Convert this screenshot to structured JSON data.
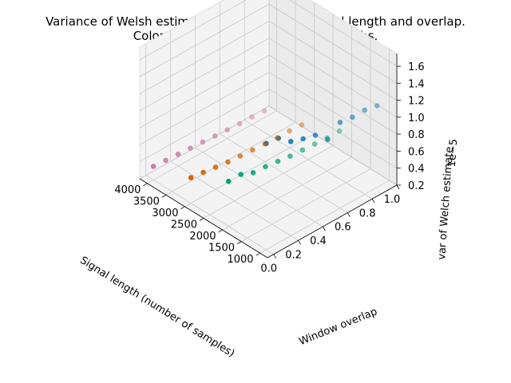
{
  "chart_data": {
    "type": "scatter",
    "projection": "3d",
    "title": "Variance of Welsh estimate as a function of signal length and overlap.",
    "subtitle": "Colors represent different signal lengths.",
    "xlabel": "Signal length (number of samples)",
    "ylabel": "Window overlap",
    "zlabel": "var of Welch estimate",
    "z_offset_label": "1e−5",
    "x_ticks": [
      "1000",
      "1500",
      "2000",
      "2500",
      "3000",
      "3500",
      "4000"
    ],
    "y_ticks": [
      "0.0",
      "0.2",
      "0.4",
      "0.6",
      "0.8",
      "1.0"
    ],
    "z_ticks": [
      "0.2",
      "0.4",
      "0.6",
      "0.8",
      "1.0",
      "1.2",
      "1.4",
      "1.6"
    ],
    "x_range": [
      800,
      4200
    ],
    "y_range": [
      -0.05,
      1.0
    ],
    "z_range": [
      0.2,
      1.75
    ],
    "grid": true,
    "series": [
      {
        "color": "#0072b2",
        "x": [
          1000,
          1000,
          1000,
          1000,
          1000,
          1000,
          1000,
          1000,
          1000,
          1000
        ],
        "y": [
          0.0,
          0.1,
          0.2,
          0.3,
          0.4,
          0.5,
          0.6,
          0.7,
          0.8,
          0.9
        ],
        "z": [
          1.45,
          1.43,
          1.31,
          1.26,
          1.22,
          1.09,
          1.21,
          1.19,
          1.19,
          1.16
        ]
      },
      {
        "color": "#009e73",
        "x": [
          2000,
          2000,
          2000,
          2000,
          2000,
          2000,
          2000,
          2000,
          2000,
          2000
        ],
        "y": [
          0.0,
          0.1,
          0.2,
          0.3,
          0.4,
          0.5,
          0.6,
          0.7,
          0.8,
          0.9
        ],
        "z": [
          0.73,
          0.73,
          0.67,
          0.66,
          0.64,
          0.62,
          0.61,
          0.6,
          0.59,
          0.59
        ]
      },
      {
        "color": "#d55e00",
        "x": [
          3000,
          3000,
          3000,
          3000,
          3000,
          3000,
          3000,
          3000,
          3000,
          3000
        ],
        "y": [
          0.0,
          0.1,
          0.2,
          0.3,
          0.4,
          0.5,
          0.6,
          0.7,
          0.8,
          0.9
        ],
        "z": [
          0.5,
          0.48,
          0.46,
          0.44,
          0.43,
          0.42,
          0.41,
          0.4,
          0.4,
          0.39
        ]
      },
      {
        "color": "#cc79a7",
        "x": [
          4000,
          4000,
          4000,
          4000,
          4000,
          4000,
          4000,
          4000,
          4000,
          4000
        ],
        "y": [
          0.0,
          0.1,
          0.2,
          0.3,
          0.4,
          0.5,
          0.6,
          0.7,
          0.8,
          0.9
        ],
        "z": [
          0.36,
          0.35,
          0.34,
          0.33,
          0.32,
          0.31,
          0.3,
          0.29,
          0.29,
          0.28
        ]
      }
    ]
  }
}
